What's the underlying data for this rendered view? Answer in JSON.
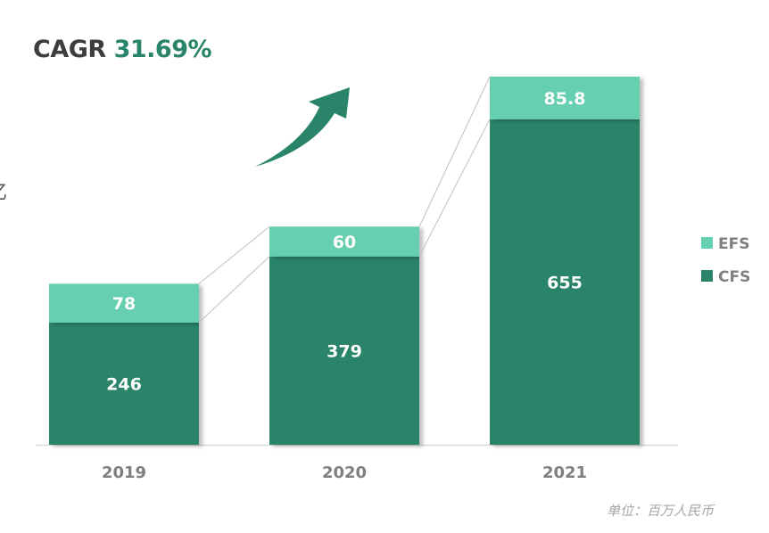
{
  "title": {
    "label": "CAGR",
    "value": "31.69%"
  },
  "edge_text": "亿",
  "unit": "单位：百万人民币",
  "colors": {
    "CFS": "#2a8469",
    "EFS": "#66cfb0"
  },
  "chart_data": {
    "type": "bar",
    "stacked": true,
    "categories": [
      "2019",
      "2020",
      "2021"
    ],
    "series": [
      {
        "name": "CFS",
        "values": [
          246,
          379,
          655
        ],
        "labels": [
          "246",
          "379",
          "655"
        ]
      },
      {
        "name": "EFS",
        "values": [
          78,
          60,
          85.8
        ],
        "labels": [
          "78",
          "60",
          "85.8"
        ]
      }
    ],
    "legend": {
      "position": "right",
      "entries": [
        "EFS",
        "CFS"
      ]
    },
    "grid": false
  }
}
